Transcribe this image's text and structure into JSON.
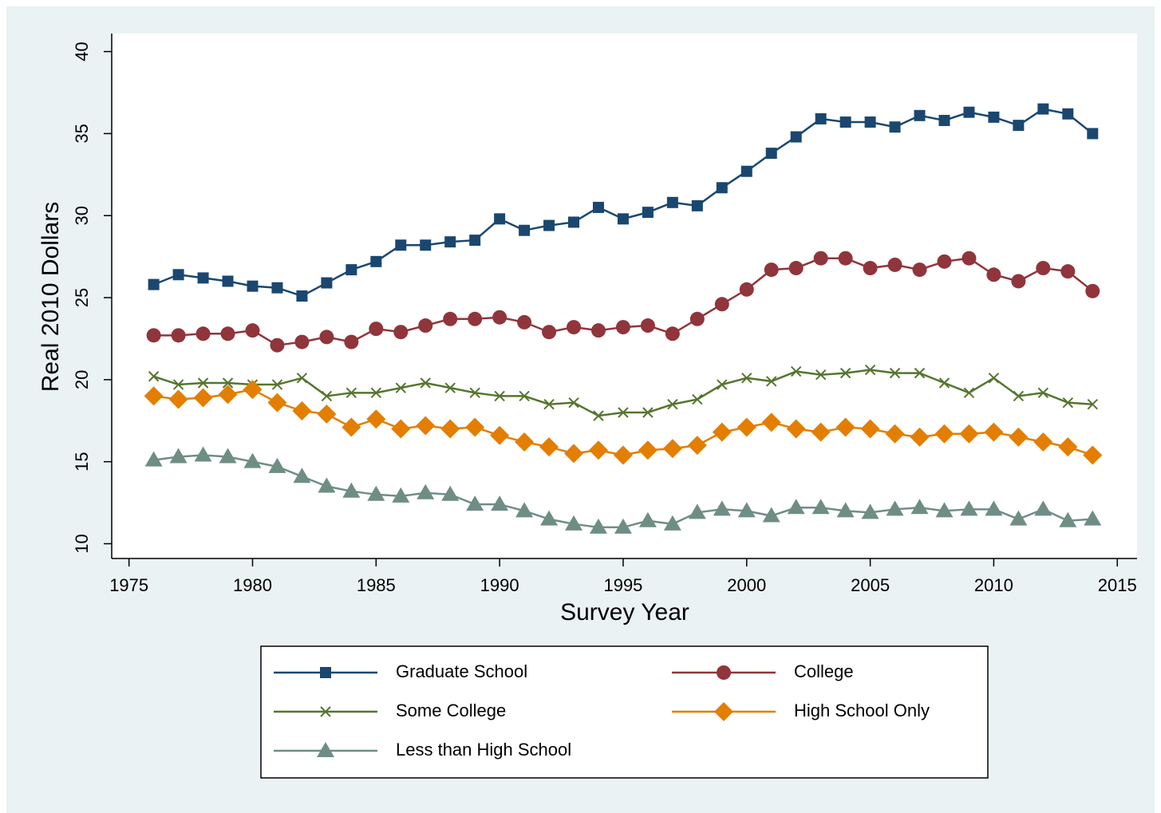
{
  "chart_data": {
    "type": "line",
    "x_label": "Survey Year",
    "y_label": "Real 2010 Dollars",
    "x": [
      1976,
      1977,
      1978,
      1979,
      1980,
      1981,
      1982,
      1983,
      1984,
      1985,
      1986,
      1987,
      1988,
      1989,
      1990,
      1991,
      1992,
      1993,
      1994,
      1995,
      1996,
      1997,
      1998,
      1999,
      2000,
      2001,
      2002,
      2003,
      2004,
      2005,
      2006,
      2007,
      2008,
      2009,
      2010,
      2011,
      2012,
      2013,
      2014
    ],
    "xlim": [
      1974.3,
      2015.8
    ],
    "xticks": [
      1975,
      1980,
      1985,
      1990,
      1995,
      2000,
      2005,
      2010,
      2015
    ],
    "ylim": [
      9.1,
      41.1
    ],
    "yticks": [
      10,
      15,
      20,
      25,
      30,
      35,
      40
    ],
    "grid": false,
    "legend_position": "bottom",
    "series": [
      {
        "name": "Graduate School",
        "color": "#1a476f",
        "marker": "square",
        "values": [
          25.8,
          26.4,
          26.2,
          26.0,
          25.7,
          25.6,
          25.1,
          25.9,
          26.7,
          27.2,
          28.2,
          28.2,
          28.4,
          28.5,
          29.8,
          29.1,
          29.4,
          29.6,
          30.5,
          29.8,
          30.2,
          30.8,
          30.6,
          31.7,
          32.7,
          33.8,
          34.8,
          35.9,
          35.7,
          35.7,
          35.4,
          36.1,
          35.8,
          36.3,
          36.0,
          35.5,
          36.5,
          36.2,
          35.0
        ]
      },
      {
        "name": "College",
        "color": "#90353b",
        "marker": "circle",
        "values": [
          22.7,
          22.7,
          22.8,
          22.8,
          23.0,
          22.1,
          22.3,
          22.6,
          22.3,
          23.1,
          22.9,
          23.3,
          23.7,
          23.7,
          23.8,
          23.5,
          22.9,
          23.2,
          23.0,
          23.2,
          23.3,
          22.8,
          23.7,
          24.6,
          25.5,
          26.7,
          26.8,
          27.4,
          27.4,
          26.8,
          27.0,
          26.7,
          27.2,
          27.4,
          26.4,
          26.0,
          26.8,
          26.6,
          25.4
        ]
      },
      {
        "name": "Some College",
        "color": "#55752f",
        "marker": "x",
        "values": [
          20.2,
          19.7,
          19.8,
          19.8,
          19.7,
          19.7,
          20.1,
          19.0,
          19.2,
          19.2,
          19.5,
          19.8,
          19.5,
          19.2,
          19.0,
          19.0,
          18.5,
          18.6,
          17.8,
          18.0,
          18.0,
          18.5,
          18.8,
          19.7,
          20.1,
          19.9,
          20.5,
          20.3,
          20.4,
          20.6,
          20.4,
          20.4,
          19.8,
          19.2,
          20.1,
          19.0,
          19.2,
          18.6,
          18.5
        ]
      },
      {
        "name": "High School Only",
        "color": "#e37e00",
        "marker": "diamond",
        "values": [
          19.0,
          18.8,
          18.9,
          19.1,
          19.4,
          18.6,
          18.1,
          17.9,
          17.1,
          17.6,
          17.0,
          17.2,
          17.0,
          17.1,
          16.6,
          16.2,
          15.9,
          15.5,
          15.7,
          15.4,
          15.7,
          15.8,
          16.0,
          16.8,
          17.1,
          17.4,
          17.0,
          16.8,
          17.1,
          17.0,
          16.7,
          16.5,
          16.7,
          16.7,
          16.8,
          16.5,
          16.2,
          15.9,
          15.4
        ]
      },
      {
        "name": "Less than High School",
        "color": "#6e8e84",
        "marker": "triangle",
        "values": [
          15.1,
          15.3,
          15.4,
          15.3,
          15.0,
          14.7,
          14.1,
          13.5,
          13.2,
          13.0,
          12.9,
          13.1,
          13.0,
          12.4,
          12.4,
          12.0,
          11.5,
          11.2,
          11.0,
          11.0,
          11.4,
          11.2,
          11.9,
          12.1,
          12.0,
          11.7,
          12.2,
          12.2,
          12.0,
          11.9,
          12.1,
          12.2,
          12.0,
          12.1,
          12.1,
          11.5,
          12.1,
          11.4,
          11.5
        ]
      }
    ]
  }
}
